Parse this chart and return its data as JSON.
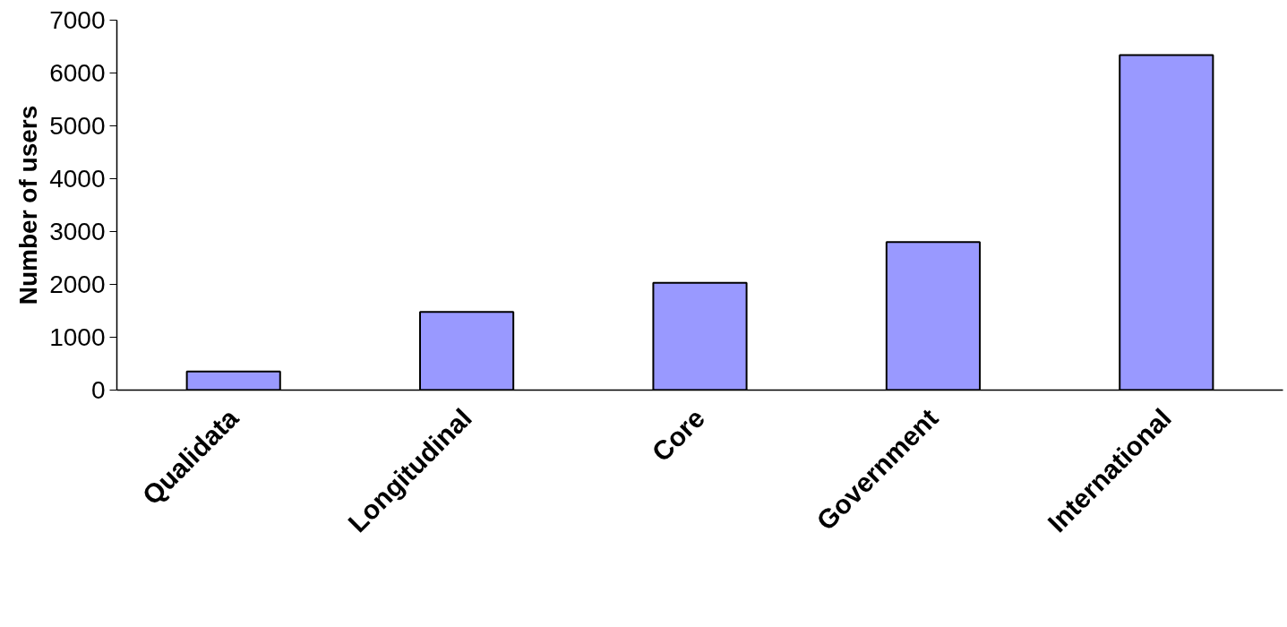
{
  "chart_data": {
    "type": "bar",
    "ylabel": "Number of users",
    "categories": [
      "Qualidata",
      "Longitudinal",
      "Core",
      "Government",
      "International"
    ],
    "values": [
      350,
      1480,
      2030,
      2800,
      6340
    ],
    "color": "#9999ff",
    "ylim": [
      0,
      7000
    ],
    "yticks": [
      0,
      1000,
      2000,
      3000,
      4000,
      5000,
      6000,
      7000
    ],
    "grid": false
  }
}
